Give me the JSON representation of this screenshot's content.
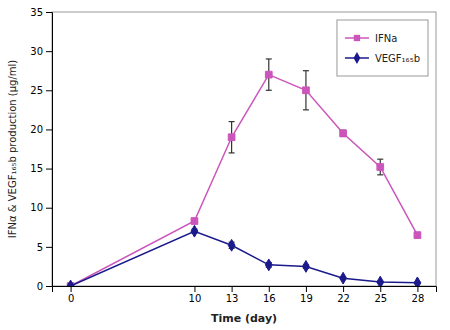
{
  "chart_data": {
    "type": "line",
    "xlabel": "Time (day)",
    "ylabel": "IFNα & VEGF₁₆₅b production (μg/ml)",
    "x": [
      0,
      10,
      13,
      16,
      19,
      22,
      25,
      28
    ],
    "series": [
      {
        "name": "IFNa",
        "color": "#cc55bb",
        "marker": "square",
        "values": [
          0,
          8.3,
          19.0,
          27.0,
          25.0,
          19.5,
          15.2,
          6.5
        ],
        "errors": [
          0.0,
          0.2,
          2.0,
          2.0,
          2.5,
          0.4,
          1.0,
          0.2
        ]
      },
      {
        "name": "VEGF₁₆₅b",
        "color": "#1a1a8c",
        "marker": "diamond",
        "values": [
          0,
          7.0,
          5.2,
          2.7,
          2.5,
          1.0,
          0.5,
          0.4
        ],
        "errors": [
          0.0,
          0.25,
          0.4,
          0.3,
          0.25,
          0.12,
          0.12,
          0.08
        ]
      }
    ],
    "xlim": [
      -1.5,
      29.5
    ],
    "xticks": [
      0,
      10,
      13,
      16,
      19,
      22,
      25,
      28
    ],
    "ylim": [
      0,
      35
    ],
    "yticks": [
      0,
      5,
      10,
      15,
      20,
      25,
      30,
      35
    ],
    "grid": false,
    "legend": "upper right"
  }
}
